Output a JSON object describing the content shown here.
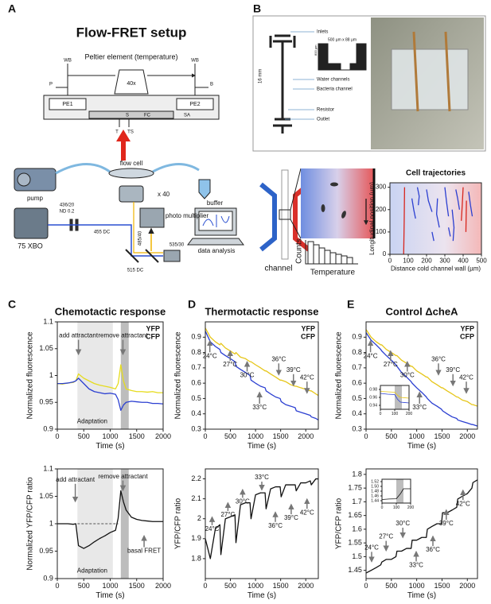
{
  "panel_labels": [
    "A",
    "B",
    "C",
    "D",
    "E"
  ],
  "setup": {
    "title": "Flow-FRET setup",
    "labels": [
      "Peltier element (temperature)",
      "WB",
      "WB",
      "P",
      "B",
      "PE1",
      "PE2",
      "40x",
      "S",
      "FC",
      "SA",
      "T",
      "TS",
      "flow cell",
      "pump",
      "buffer",
      "x 40",
      "436/20",
      "ND 0.2",
      "455 DC",
      "75 XBO",
      "photo multiplier",
      "485/40",
      "535/30",
      "515 DC",
      "data analysis"
    ]
  },
  "device": {
    "labels": [
      "Inlets",
      "16 mm",
      "800 µm",
      "500 µm x 88 µm",
      "Water channels",
      "Bacteria channel",
      "Resistor",
      "Outlet"
    ]
  },
  "schematic": {
    "labels": [
      "channel",
      "Counts",
      "Temperature"
    ]
  },
  "chart_data": [
    {
      "type": "trajectory",
      "title": "Cell trajectories",
      "xlabel": "Distance cold channel wall (µm)",
      "ylabel": "Longitudinal position (µm)",
      "xlim": [
        0,
        500
      ],
      "ylim": [
        0,
        320
      ],
      "xticks": [
        0,
        100,
        200,
        300,
        400,
        500
      ],
      "yticks": [
        0,
        100,
        200,
        300
      ],
      "series": [
        {
          "color": "#d7261e",
          "x": [
            75,
            78,
            80
          ],
          "y": [
            0,
            150,
            300
          ]
        },
        {
          "color": "#d7261e",
          "x": [
            390,
            395,
            400
          ],
          "y": [
            150,
            220,
            300
          ]
        },
        {
          "color": "#d7261e",
          "x": [
            415,
            418
          ],
          "y": [
            100,
            240
          ]
        },
        {
          "color": "#2b3fd1",
          "x": [
            120,
            130,
            140
          ],
          "y": [
            250,
            200,
            160
          ]
        },
        {
          "color": "#2b3fd1",
          "x": [
            150,
            160,
            155
          ],
          "y": [
            300,
            260,
            220
          ]
        },
        {
          "color": "#2b3fd1",
          "x": [
            200,
            210,
            230
          ],
          "y": [
            290,
            240,
            190
          ]
        },
        {
          "color": "#2b3fd1",
          "x": [
            260,
            255,
            270
          ],
          "y": [
            250,
            180,
            120
          ]
        },
        {
          "color": "#2b3fd1",
          "x": [
            300,
            310,
            320
          ],
          "y": [
            300,
            230,
            170
          ]
        },
        {
          "color": "#2b3fd1",
          "x": [
            340,
            350,
            345
          ],
          "y": [
            200,
            120,
            60
          ]
        },
        {
          "color": "#2b3fd1",
          "x": [
            360,
            370,
            380
          ],
          "y": [
            290,
            250,
            200
          ]
        },
        {
          "color": "#2b3fd1",
          "x": [
            430,
            440,
            450
          ],
          "y": [
            280,
            220,
            170
          ]
        },
        {
          "color": "#2b3fd1",
          "x": [
            230,
            240
          ],
          "y": [
            100,
            60
          ]
        },
        {
          "color": "#2b3fd1",
          "x": [
            320,
            330
          ],
          "y": [
            120,
            80
          ]
        }
      ]
    },
    {
      "type": "line",
      "title": "Chemotactic response",
      "xlabel": "Time (s)",
      "ylabel": "Normalized fluorescence",
      "xlim": [
        0,
        2000
      ],
      "ylim": [
        0.9,
        1.1
      ],
      "xticks": [
        0,
        500,
        1000,
        1500,
        2000
      ],
      "yticks": [
        0.9,
        0.95,
        1,
        1.05,
        1.1
      ],
      "spans": [
        [
          380,
          1050
        ],
        [
          1200,
          1350
        ]
      ],
      "span_colors": [
        "#e8e8e8",
        "#bdbdbd"
      ],
      "legend": "upper right",
      "x": [
        0,
        100,
        200,
        300,
        350,
        400,
        500,
        600,
        700,
        800,
        900,
        1000,
        1100,
        1150,
        1200,
        1250,
        1300,
        1400,
        1500,
        1600,
        1700,
        1800,
        1900,
        2000
      ],
      "series": [
        {
          "name": "YFP",
          "color": "#e6dc1e",
          "values": [
            0.985,
            0.984,
            0.986,
            0.987,
            0.99,
            1.003,
            0.995,
            0.99,
            0.985,
            0.982,
            0.98,
            0.978,
            0.975,
            0.985,
            1.02,
            0.99,
            0.975,
            0.972,
            0.97,
            0.97,
            0.969,
            0.97,
            0.968,
            0.968
          ]
        },
        {
          "name": "CFP",
          "color": "#2b3fd1",
          "values": [
            0.985,
            0.985,
            0.986,
            0.988,
            0.99,
            0.995,
            0.985,
            0.975,
            0.97,
            0.968,
            0.966,
            0.967,
            0.965,
            0.955,
            0.935,
            0.945,
            0.95,
            0.952,
            0.951,
            0.95,
            0.95,
            0.948,
            0.948,
            0.947
          ]
        }
      ],
      "annotations": [
        "add attractant",
        "remove attractant",
        "Adaptation"
      ]
    },
    {
      "type": "line",
      "xlabel": "Time (s)",
      "ylabel": "Normalized YFP/CFP ratio",
      "xlim": [
        0,
        2000
      ],
      "ylim": [
        0.9,
        1.1
      ],
      "xticks": [
        0,
        500,
        1000,
        1500,
        2000
      ],
      "yticks": [
        0.9,
        0.95,
        1,
        1.05,
        1.1
      ],
      "spans": [
        [
          380,
          1050
        ],
        [
          1200,
          1350
        ]
      ],
      "span_colors": [
        "#e8e8e8",
        "#bdbdbd"
      ],
      "reference_line": 1,
      "reference_range": [
        380,
        1150
      ],
      "x": [
        0,
        100,
        200,
        300,
        350,
        400,
        500,
        600,
        700,
        800,
        900,
        1000,
        1100,
        1150,
        1200,
        1250,
        1300,
        1400,
        1500,
        1600,
        1700,
        1800,
        1900,
        2000
      ],
      "series": [
        {
          "color": "#111111",
          "values": [
            1,
            1,
            1,
            0.999,
            1,
            0.96,
            0.955,
            0.96,
            0.967,
            0.973,
            0.978,
            0.984,
            0.988,
            1.01,
            1.06,
            1.04,
            1.025,
            1.012,
            1.008,
            1.006,
            1.005,
            1.004,
            1.004,
            1.004
          ]
        }
      ],
      "annotations": [
        "add attractant",
        "remove attractant",
        "Adaptation",
        "basal FRET"
      ]
    },
    {
      "type": "line",
      "title": "Thermotactic response",
      "xlabel": "Time (s)",
      "ylabel": "Normalized fluorescence",
      "xlim": [
        0,
        2250
      ],
      "ylim": [
        0.3,
        1.0
      ],
      "xticks": [
        0,
        500,
        1000,
        1500,
        2000
      ],
      "yticks": [
        0.3,
        0.4,
        0.5,
        0.6,
        0.7,
        0.8,
        0.9
      ],
      "legend": "upper right",
      "x": [
        0,
        100,
        200,
        290,
        310,
        400,
        500,
        590,
        610,
        700,
        800,
        890,
        910,
        1000,
        1100,
        1190,
        1210,
        1300,
        1400,
        1490,
        1510,
        1600,
        1700,
        1790,
        1810,
        1900,
        2000,
        2090,
        2110,
        2200,
        2250
      ],
      "series": [
        {
          "name": "YFP",
          "color": "#e6c619",
          "values": [
            0.96,
            0.9,
            0.87,
            0.85,
            0.86,
            0.83,
            0.81,
            0.79,
            0.8,
            0.77,
            0.76,
            0.74,
            0.74,
            0.72,
            0.7,
            0.68,
            0.68,
            0.66,
            0.64,
            0.62,
            0.62,
            0.61,
            0.59,
            0.58,
            0.58,
            0.57,
            0.56,
            0.55,
            0.55,
            0.53,
            0.52
          ]
        },
        {
          "name": "CFP",
          "color": "#2b3fd1",
          "values": [
            0.94,
            0.87,
            0.84,
            0.82,
            0.8,
            0.78,
            0.76,
            0.74,
            0.71,
            0.69,
            0.67,
            0.65,
            0.62,
            0.6,
            0.58,
            0.57,
            0.55,
            0.53,
            0.51,
            0.5,
            0.48,
            0.46,
            0.45,
            0.44,
            0.42,
            0.41,
            0.4,
            0.39,
            0.38,
            0.37,
            0.36
          ]
        }
      ],
      "annotations": [
        "24°C",
        "27°C",
        "30°C",
        "33°C",
        "36°C",
        "39°C",
        "42°C"
      ]
    },
    {
      "type": "line",
      "xlabel": "Time (s)",
      "ylabel": "YFP/CFP ratio",
      "xlim": [
        0,
        2250
      ],
      "ylim": [
        1.7,
        2.25
      ],
      "xticks": [
        0,
        500,
        1000,
        1500,
        2000
      ],
      "yticks": [
        1.8,
        1.9,
        2,
        2.1,
        2.2
      ],
      "x": [
        0,
        100,
        200,
        290,
        310,
        400,
        500,
        590,
        610,
        700,
        800,
        890,
        910,
        1000,
        1100,
        1190,
        1210,
        1300,
        1400,
        1490,
        1510,
        1600,
        1700,
        1790,
        1810,
        1900,
        2000,
        2090,
        2110,
        2200,
        2250
      ],
      "series": [
        {
          "color": "#111111",
          "values": [
            1.9,
            1.8,
            1.95,
            1.97,
            1.82,
            2.0,
            2.01,
            2.02,
            1.88,
            2.07,
            2.08,
            2.08,
            2.0,
            2.12,
            2.13,
            2.13,
            2.05,
            2.15,
            2.16,
            2.16,
            2.11,
            2.17,
            2.17,
            2.17,
            2.14,
            2.18,
            2.18,
            2.19,
            2.17,
            2.2,
            2.2
          ]
        }
      ],
      "annotations": [
        "24°C",
        "27°C",
        "30°C",
        "33°C",
        "36°C",
        "39°C",
        "42°C"
      ]
    },
    {
      "type": "line",
      "title": "Control ΔcheA",
      "xlabel": "Time (s)",
      "ylabel": "Normalized fluorescence",
      "xlim": [
        0,
        2200
      ],
      "ylim": [
        0.3,
        1.0
      ],
      "xticks": [
        0,
        500,
        1000,
        1500,
        2000
      ],
      "yticks": [
        0.3,
        0.4,
        0.5,
        0.6,
        0.7,
        0.8,
        0.9
      ],
      "legend": "upper right",
      "x": [
        0,
        100,
        200,
        290,
        310,
        400,
        500,
        590,
        610,
        700,
        800,
        890,
        910,
        1000,
        1100,
        1190,
        1210,
        1300,
        1400,
        1490,
        1510,
        1600,
        1700,
        1790,
        1810,
        1900,
        2000,
        2090,
        2110,
        2200
      ],
      "series": [
        {
          "name": "YFP",
          "color": "#e6c619",
          "values": [
            0.95,
            0.9,
            0.87,
            0.85,
            0.85,
            0.82,
            0.8,
            0.78,
            0.78,
            0.75,
            0.73,
            0.71,
            0.71,
            0.68,
            0.66,
            0.64,
            0.64,
            0.61,
            0.59,
            0.57,
            0.57,
            0.55,
            0.53,
            0.51,
            0.51,
            0.49,
            0.48,
            0.46,
            0.46,
            0.45
          ]
        },
        {
          "name": "CFP",
          "color": "#2b3fd1",
          "values": [
            0.93,
            0.88,
            0.85,
            0.82,
            0.81,
            0.78,
            0.75,
            0.72,
            0.71,
            0.67,
            0.64,
            0.61,
            0.6,
            0.57,
            0.54,
            0.51,
            0.5,
            0.47,
            0.45,
            0.43,
            0.42,
            0.4,
            0.38,
            0.37,
            0.36,
            0.35,
            0.34,
            0.33,
            0.33,
            0.32
          ]
        }
      ],
      "annotations": [
        "24°C",
        "27°C",
        "30°C",
        "33°C",
        "36°C",
        "39°C",
        "42°C"
      ]
    },
    {
      "type": "line",
      "xlabel": "Time (s)",
      "ylabel": "YFP/CFP ratio",
      "xlim": [
        0,
        2200
      ],
      "ylim": [
        1.42,
        1.82
      ],
      "xticks": [
        0,
        500,
        1000,
        1500,
        2000
      ],
      "yticks": [
        1.45,
        1.5,
        1.55,
        1.6,
        1.65,
        1.7,
        1.75,
        1.8
      ],
      "x": [
        0,
        100,
        200,
        290,
        310,
        400,
        500,
        590,
        610,
        700,
        800,
        890,
        910,
        1000,
        1100,
        1190,
        1210,
        1300,
        1400,
        1490,
        1510,
        1600,
        1700,
        1790,
        1810,
        1900,
        2000,
        2090,
        2110,
        2200
      ],
      "series": [
        {
          "color": "#111111",
          "values": [
            1.44,
            1.45,
            1.46,
            1.47,
            1.48,
            1.49,
            1.49,
            1.5,
            1.52,
            1.52,
            1.53,
            1.53,
            1.56,
            1.56,
            1.57,
            1.57,
            1.6,
            1.61,
            1.62,
            1.62,
            1.66,
            1.66,
            1.67,
            1.68,
            1.71,
            1.72,
            1.73,
            1.75,
            1.77,
            1.78
          ]
        }
      ],
      "annotations": [
        "24°C",
        "27°C",
        "30°C",
        "33°C",
        "36°C",
        "39°C",
        "42°C"
      ]
    },
    {
      "type": "line",
      "xlim": [
        0,
        200
      ],
      "ylim": [
        0.93,
        0.99
      ],
      "xticks": [
        0,
        100,
        200
      ],
      "yticks": [
        0.94,
        0.96,
        0.98
      ],
      "spans": [
        [
          100,
          150
        ]
      ],
      "span_colors": [
        "#bdbdbd"
      ],
      "x": [
        0,
        50,
        100,
        120,
        140,
        200
      ],
      "series": [
        {
          "color": "#e6c619",
          "values": [
            0.975,
            0.974,
            0.973,
            0.965,
            0.96,
            0.958
          ]
        },
        {
          "color": "#2b3fd1",
          "values": [
            0.97,
            0.968,
            0.967,
            0.955,
            0.948,
            0.946
          ]
        }
      ]
    },
    {
      "type": "line",
      "xlim": [
        0,
        200
      ],
      "ylim": [
        1.43,
        1.53
      ],
      "xticks": [
        0,
        100,
        200
      ],
      "yticks": [
        1.44,
        1.46,
        1.48,
        {
          "value": 1.5,
          "label": "1.50"
        },
        1.52
      ],
      "spans": [
        [
          100,
          150
        ]
      ],
      "span_colors": [
        "#bdbdbd"
      ],
      "x": [
        0,
        50,
        100,
        130,
        150,
        200
      ],
      "series": [
        {
          "color": "#111111",
          "values": [
            1.445,
            1.447,
            1.448,
            1.47,
            1.49,
            1.49
          ]
        }
      ]
    }
  ]
}
